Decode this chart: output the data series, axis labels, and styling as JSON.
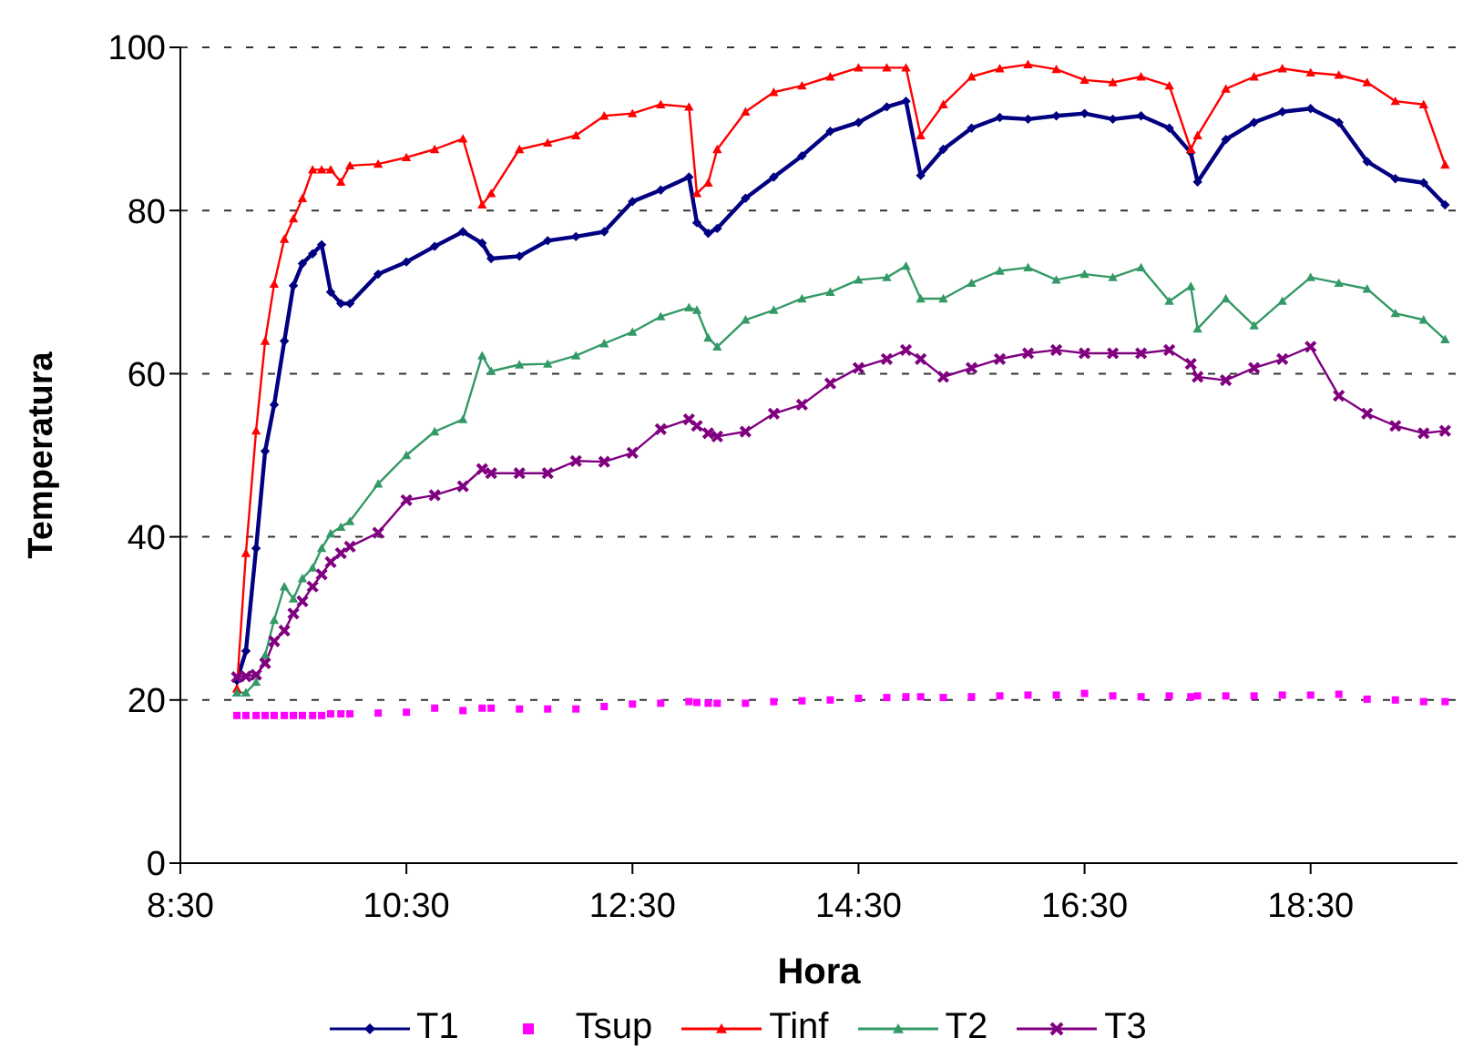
{
  "chart_data": {
    "type": "line",
    "xlabel": "Hora",
    "ylabel": "Temperatura",
    "x": [
      9.0,
      9.08,
      9.17,
      9.25,
      9.33,
      9.42,
      9.5,
      9.58,
      9.67,
      9.75,
      9.83,
      9.92,
      10.0,
      10.25,
      10.5,
      10.75,
      11.0,
      11.17,
      11.25,
      11.5,
      11.75,
      12.0,
      12.25,
      12.5,
      12.75,
      13.0,
      13.07,
      13.17,
      13.25,
      13.5,
      13.75,
      14.0,
      14.25,
      14.5,
      14.75,
      14.92,
      15.05,
      15.25,
      15.5,
      15.75,
      16.0,
      16.25,
      16.5,
      16.75,
      17.0,
      17.25,
      17.44,
      17.5,
      17.75,
      18.0,
      18.25,
      18.5,
      18.75,
      19.0,
      19.25,
      19.5,
      19.69
    ],
    "xlim": [
      8.5,
      19.8
    ],
    "xticks": [
      {
        "value": 8.5,
        "label": "8:30"
      },
      {
        "value": 10.5,
        "label": "10:30"
      },
      {
        "value": 12.5,
        "label": "12:30"
      },
      {
        "value": 14.5,
        "label": "14:30"
      },
      {
        "value": 16.5,
        "label": "16:30"
      },
      {
        "value": 18.5,
        "label": "18:30"
      }
    ],
    "ylim": [
      0,
      100
    ],
    "yticks": [
      0,
      20,
      40,
      60,
      80,
      100
    ],
    "grid": "y",
    "legend": "bottom",
    "line_style": "solid",
    "series": [
      {
        "name": "T1",
        "color": "#000080",
        "marker": "diamond",
        "values": [
          22.4,
          26,
          38.6,
          50.5,
          56.2,
          64,
          70.8,
          73.5,
          74.7,
          75.8,
          70,
          68.6,
          68.6,
          72.2,
          73.7,
          75.6,
          77.4,
          76,
          74.1,
          74.4,
          76.3,
          76.8,
          77.4,
          81.1,
          82.5,
          84.1,
          78.5,
          77.2,
          77.8,
          81.5,
          84.1,
          86.7,
          89.7,
          90.8,
          92.7,
          93.4,
          84.3,
          87.5,
          90.1,
          91.4,
          91.2,
          91.6,
          91.9,
          91.2,
          91.6,
          90.1,
          87.1,
          83.5,
          88.7,
          90.8,
          92.1,
          92.5,
          90.8,
          86,
          83.9,
          83.4,
          80.7
        ]
      },
      {
        "name": "Tsup",
        "type": "scatter",
        "color": "#ff00ff",
        "marker": "square",
        "values": [
          18.1,
          18.1,
          18.1,
          18.1,
          18.1,
          18.1,
          18.1,
          18.1,
          18.1,
          18.1,
          18.3,
          18.3,
          18.3,
          18.4,
          18.5,
          19,
          18.7,
          19,
          19,
          18.9,
          18.9,
          18.9,
          19.2,
          19.5,
          19.6,
          19.8,
          19.7,
          19.6,
          19.6,
          19.6,
          19.8,
          19.9,
          20,
          20.2,
          20.3,
          20.4,
          20.4,
          20.3,
          20.4,
          20.5,
          20.6,
          20.6,
          20.8,
          20.5,
          20.4,
          20.5,
          20.4,
          20.5,
          20.5,
          20.5,
          20.6,
          20.6,
          20.7,
          20.1,
          20,
          19.8,
          19.8
        ]
      },
      {
        "name": "Tinf",
        "color": "#ff0000",
        "marker": "triangle",
        "values": [
          21.4,
          38,
          53,
          64,
          71,
          76.5,
          79,
          81.5,
          85,
          85,
          85,
          83.5,
          85.5,
          85.7,
          86.5,
          87.5,
          88.8,
          80.7,
          82.1,
          87.5,
          88.3,
          89.2,
          91.6,
          91.9,
          93,
          92.7,
          82.1,
          83.4,
          87.5,
          92.1,
          94.5,
          95.3,
          96.4,
          97.5,
          97.5,
          97.5,
          89.2,
          93,
          96.4,
          97.4,
          97.9,
          97.3,
          96,
          95.7,
          96.4,
          95.3,
          87.5,
          89.2,
          94.9,
          96.4,
          97.4,
          96.9,
          96.6,
          95.7,
          93.4,
          93,
          85.6
        ]
      },
      {
        "name": "T2",
        "color": "#339966",
        "marker": "triangle",
        "values": [
          20.9,
          20.9,
          22.2,
          25.5,
          29.8,
          33.9,
          32.4,
          34.9,
          36.2,
          38.6,
          40.4,
          41.2,
          41.9,
          46.5,
          50,
          52.9,
          54.4,
          62.2,
          60.3,
          61.1,
          61.2,
          62.2,
          63.7,
          65.1,
          67,
          68.1,
          67.8,
          64.4,
          63.3,
          66.6,
          67.8,
          69.2,
          70,
          71.5,
          71.8,
          73.2,
          69.2,
          69.2,
          71.1,
          72.6,
          73,
          71.5,
          72.2,
          71.8,
          73,
          68.9,
          70.7,
          65.5,
          69.2,
          65.9,
          68.9,
          71.8,
          71.1,
          70.4,
          67.4,
          66.6,
          64.2
        ]
      },
      {
        "name": "T3",
        "color": "#800080",
        "marker": "cross",
        "values": [
          22.8,
          22.9,
          23.1,
          24.5,
          27.2,
          28.5,
          30.6,
          32.1,
          33.9,
          35.4,
          36.9,
          38,
          38.8,
          40.5,
          44.5,
          45.1,
          46.2,
          48.3,
          47.8,
          47.8,
          47.8,
          49.3,
          49.2,
          50.3,
          53.2,
          54.4,
          53.6,
          52.7,
          52.3,
          52.9,
          55.1,
          56.2,
          58.8,
          60.7,
          61.8,
          62.9,
          61.8,
          59.6,
          60.7,
          61.8,
          62.5,
          62.9,
          62.5,
          62.5,
          62.5,
          62.9,
          61.2,
          59.6,
          59.2,
          60.7,
          61.8,
          63.3,
          57.3,
          55.1,
          53.6,
          52.7,
          53
        ]
      }
    ]
  }
}
